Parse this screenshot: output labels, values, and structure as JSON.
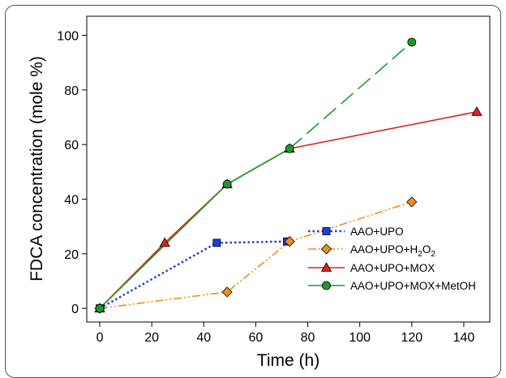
{
  "chart_data": {
    "type": "line",
    "title": "",
    "xlabel": "Time (h)",
    "ylabel": "FDCA concentration (mole %)",
    "xlim": [
      -5,
      150
    ],
    "ylim": [
      -5,
      107
    ],
    "xticks": [
      0,
      20,
      40,
      60,
      80,
      100,
      120,
      140
    ],
    "yticks": [
      0,
      20,
      40,
      60,
      80,
      100
    ],
    "grid": false,
    "legend_position": "bottom-right",
    "series": [
      {
        "name": "AAO+UPO",
        "legend_main": "AAO+UPO",
        "color": "#1f3fd6",
        "marker": "square",
        "line_style": "dotted",
        "x": [
          0,
          45,
          72
        ],
        "y": [
          0,
          24,
          24.5
        ]
      },
      {
        "name": "AAO+UPO+H2O2",
        "legend_main": "AAO+UPO+H",
        "legend_sub": "2",
        "legend_main2": "O",
        "legend_sub2": "2",
        "color": "#f28c1e",
        "marker": "diamond",
        "line_style": "dash-dot-dot",
        "x": [
          0,
          49,
          73,
          120
        ],
        "y": [
          0,
          6,
          24.5,
          39
        ]
      },
      {
        "name": "AAO+UPO+MOX",
        "legend_main": "AAO+UPO+MOX",
        "color": "#e0231b",
        "marker": "triangle",
        "line_style": "solid",
        "x": [
          0,
          25,
          49,
          73,
          145
        ],
        "y": [
          0,
          24,
          45.5,
          58.5,
          72
        ]
      },
      {
        "name": "AAO+UPO+MOX+MetOH",
        "legend_main": "AAO+UPO+MOX+MetOH",
        "color": "#1e9a2c",
        "marker": "circle",
        "line_style": "solid-then-dashed",
        "x": [
          0,
          49,
          73,
          120
        ],
        "y": [
          0,
          45.5,
          58.5,
          97.5
        ]
      }
    ]
  }
}
